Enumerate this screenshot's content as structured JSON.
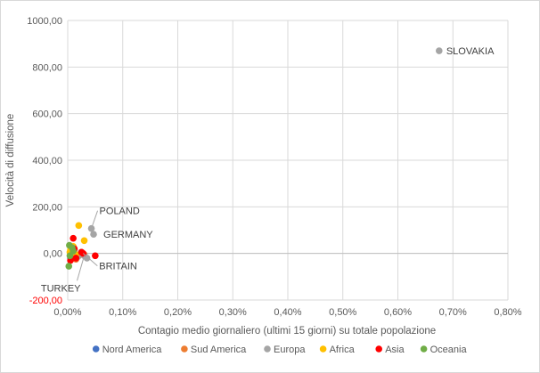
{
  "chart_data": {
    "type": "scatter",
    "title": "",
    "xlabel": "Contagio medio giornaliero (ultimi 15 giorni) su totale popolazione",
    "ylabel": "Velocità di diffusione",
    "xlim": [
      0,
      0.008
    ],
    "ylim": [
      -200,
      1000
    ],
    "x_ticks": [
      {
        "value": 0,
        "label": "0,00%"
      },
      {
        "value": 0.001,
        "label": "0,10%"
      },
      {
        "value": 0.002,
        "label": "0,20%"
      },
      {
        "value": 0.003,
        "label": "0,30%"
      },
      {
        "value": 0.004,
        "label": "0,40%"
      },
      {
        "value": 0.005,
        "label": "0,50%"
      },
      {
        "value": 0.006,
        "label": "0,60%"
      },
      {
        "value": 0.007,
        "label": "0,70%"
      },
      {
        "value": 0.008,
        "label": "0,80%"
      }
    ],
    "y_ticks": [
      {
        "value": -200,
        "label": "-200,00",
        "color": "#ff0000"
      },
      {
        "value": 0,
        "label": "0,00"
      },
      {
        "value": 200,
        "label": "200,00"
      },
      {
        "value": 400,
        "label": "400,00"
      },
      {
        "value": 600,
        "label": "600,00"
      },
      {
        "value": 800,
        "label": "800,00"
      },
      {
        "value": 1000,
        "label": "1000,00"
      }
    ],
    "grid": true,
    "legend_position": "bottom",
    "series": [
      {
        "name": "Nord America",
        "color": "#4472c4",
        "points": [
          [
            5e-05,
            -20
          ],
          [
            0.0001,
            5
          ]
        ]
      },
      {
        "name": "Sud America",
        "color": "#ed7d31",
        "points": [
          [
            0.0002,
            -10
          ],
          [
            8e-05,
            10
          ],
          [
            0.00015,
            -25
          ],
          [
            0.0003,
            -5
          ]
        ]
      },
      {
        "name": "Europa",
        "color": "#a5a5a5",
        "points": [
          [
            0.00675,
            870
          ],
          [
            0.00043,
            107
          ],
          [
            0.00047,
            82
          ],
          [
            0.00025,
            5
          ],
          [
            0.0003,
            -10
          ],
          [
            5e-05,
            -5
          ],
          [
            0.00012,
            15
          ],
          [
            0.00018,
            -15
          ],
          [
            0.00035,
            -20
          ]
        ]
      },
      {
        "name": "Africa",
        "color": "#ffc000",
        "points": [
          [
            0.0002,
            120
          ],
          [
            0.0003,
            55
          ],
          [
            5e-05,
            15
          ],
          [
            0.0001,
            30
          ],
          [
            0.00015,
            -5
          ],
          [
            8e-05,
            -20
          ],
          [
            4e-05,
            5
          ]
        ]
      },
      {
        "name": "Asia",
        "color": "#ff0000",
        "points": [
          [
            0.0001,
            65
          ],
          [
            0.00028,
            0
          ],
          [
            0.0005,
            -10
          ],
          [
            0.00025,
            5
          ],
          [
            0.00015,
            -20
          ],
          [
            5e-05,
            -30
          ],
          [
            0.00012,
            20
          ]
        ]
      },
      {
        "name": "Oceania",
        "color": "#70ad47",
        "points": [
          [
            3e-05,
            35
          ],
          [
            2e-05,
            -55
          ],
          [
            0.0001,
            10
          ],
          [
            4e-05,
            -10
          ],
          [
            8e-05,
            25
          ]
        ]
      }
    ],
    "annotations": [
      {
        "text": "SLOVAKIA",
        "x": 0.00675,
        "y": 870
      },
      {
        "text": "POLAND",
        "x": 0.00043,
        "y": 107
      },
      {
        "text": "GERMANY",
        "x": 0.00047,
        "y": 82
      },
      {
        "text": "BRITAIN",
        "x": 0.00028,
        "y": 0
      },
      {
        "text": "TURKEY",
        "x": 0.0003,
        "y": -10
      }
    ]
  }
}
